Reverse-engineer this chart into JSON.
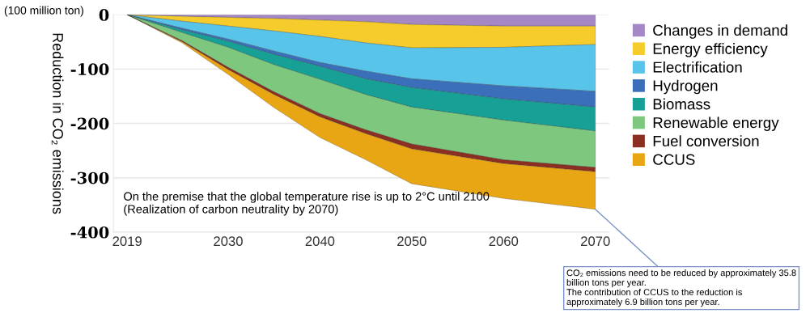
{
  "chart_data": {
    "type": "area",
    "stacked": true,
    "ylabel": "Reduction in CO₂ emissions",
    "x": [
      2019,
      2025,
      2030,
      2035,
      2040,
      2045,
      2050,
      2060,
      2070
    ],
    "xlim": [
      2017.5,
      2071.5
    ],
    "xticks": [
      2019,
      2030,
      2040,
      2050,
      2060,
      2070
    ],
    "ylim": [
      -400,
      0
    ],
    "yticks": [
      {
        "value": -400,
        "label": "-400"
      },
      {
        "value": -300,
        "label": "-300"
      },
      {
        "value": -200,
        "label": "-200"
      },
      {
        "value": -100,
        "label": "-100"
      },
      0
    ],
    "grid": "y",
    "legend": "right",
    "series": [
      {
        "name": "Changes in demand",
        "color": "#a487c4",
        "values": [
          0,
          -3,
          -5,
          -7,
          -10,
          -13,
          -18,
          -21,
          -21
        ]
      },
      {
        "name": "Energy efficiency",
        "color": "#f5cc2c",
        "values": [
          0,
          -9,
          -16,
          -23,
          -30,
          -39,
          -43,
          -39,
          -34
        ]
      },
      {
        "name": "Electrification",
        "color": "#58c4ea",
        "values": [
          0,
          -13,
          -24,
          -37,
          -48,
          -52,
          -57,
          -71,
          -86
        ]
      },
      {
        "name": "Hydrogen",
        "color": "#3b6fba",
        "values": [
          0,
          -3,
          -4,
          -6,
          -7,
          -14,
          -16,
          -24,
          -29
        ]
      },
      {
        "name": "Biomass",
        "color": "#17a095",
        "values": [
          0,
          -5,
          -11,
          -19,
          -24,
          -29,
          -36,
          -39,
          -44
        ]
      },
      {
        "name": "Renewable energy",
        "color": "#7ec77e",
        "values": [
          0,
          -15,
          -37,
          -50,
          -63,
          -65,
          -68,
          -73,
          -67
        ]
      },
      {
        "name": "Fuel conversion",
        "color": "#8b2f23",
        "values": [
          0,
          -2,
          -4,
          -5,
          -6,
          -7,
          -9,
          -7,
          -8
        ]
      },
      {
        "name": "CCUS",
        "color": "#e9a614",
        "values": [
          0,
          -2,
          -9,
          -24,
          -38,
          -48,
          -64,
          -64,
          -69
        ]
      }
    ],
    "annotations": [
      "(100 million ton)",
      "On the premise that the global temperature rise is up to 2°C until 2100\n(Realization of carbon neutrality by 2070)",
      {
        "text": "CO₂ emissions need to be reduced by approximately 35.8\nbillion tons per year.\nThe contribution of CCUS to the reduction is\napproximately 6.9 billion tons per year.",
        "x": 2070,
        "y": -358
      }
    ]
  }
}
